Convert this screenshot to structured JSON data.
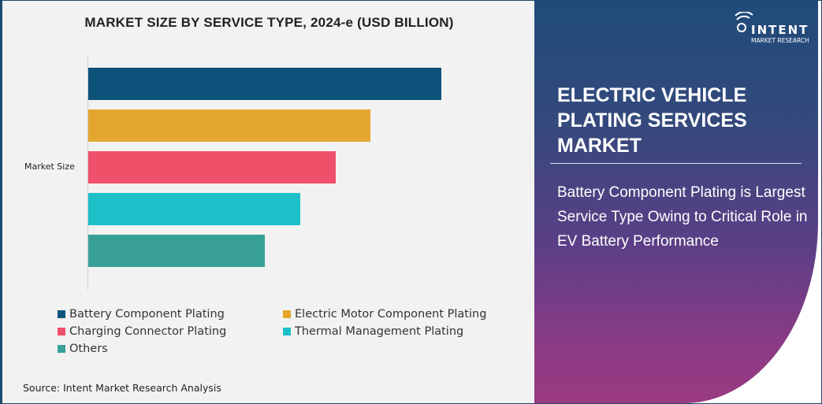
{
  "chart_data": {
    "type": "bar",
    "orientation": "horizontal",
    "title": "MARKET SIZE BY SERVICE TYPE, 2024-e (USD BILLION)",
    "categories": [
      "Market Size"
    ],
    "series": [
      {
        "name": "Battery Component Plating",
        "values": [
          100
        ],
        "color": "#0d527b"
      },
      {
        "name": "Electric Motor Component Plating",
        "values": [
          80
        ],
        "color": "#e3a62e"
      },
      {
        "name": "Charging Connector Plating",
        "values": [
          70
        ],
        "color": "#f0506a"
      },
      {
        "name": "Thermal Management Plating",
        "values": [
          60
        ],
        "color": "#1dbfc8"
      },
      {
        "name": "Others",
        "values": [
          50
        ],
        "color": "#38a096"
      }
    ],
    "value_note_relative": true,
    "grid": false,
    "legend_position": "bottom"
  },
  "source": "Source: Intent Market Research Analysis",
  "side_panel": {
    "logo_text": "INTENT",
    "logo_subtext": "MARKET RESEARCH",
    "title": "ELECTRIC VEHICLE PLATING SERVICES MARKET",
    "summary": "Battery Component Plating is Largest Service Type Owing to Critical Role in EV Battery Performance"
  }
}
